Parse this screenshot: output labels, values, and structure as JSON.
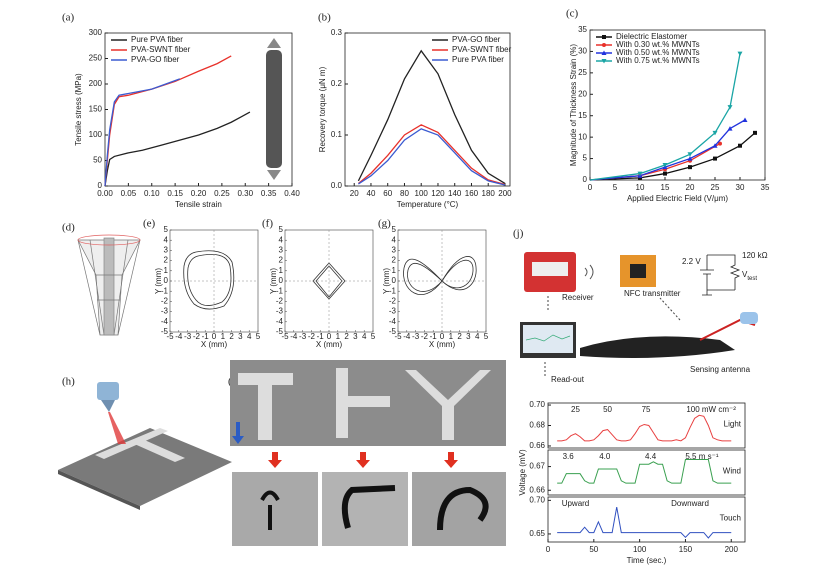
{
  "chart_data": [
    {
      "type": "line",
      "panel": "(a)",
      "xlabel": "Tensile strain",
      "ylabel": "Tensile stress (MPa)",
      "xlim": [
        0,
        0.4
      ],
      "xticks": [
        {
          "value": 0,
          "label": "0.00"
        },
        {
          "value": 0.05,
          "label": "0.05"
        },
        {
          "value": 0.1,
          "label": "0.10"
        },
        {
          "value": 0.15,
          "label": "0.15"
        },
        {
          "value": 0.2,
          "label": "0.20"
        },
        {
          "value": 0.25,
          "label": "0.25"
        },
        {
          "value": 0.3,
          "label": "0.30"
        },
        {
          "value": 0.35,
          "label": "0.35"
        },
        {
          "value": 0.4,
          "label": "0.40"
        }
      ],
      "ylim": [
        0,
        300
      ],
      "yticks": [
        0,
        50,
        100,
        150,
        200,
        250,
        300
      ],
      "legend": "upper left",
      "series": [
        {
          "name": "Pure PVA fiber",
          "color": "#222222",
          "x": [
            0,
            0.005,
            0.01,
            0.02,
            0.05,
            0.08,
            0.12,
            0.16,
            0.2,
            0.24,
            0.27,
            0.29,
            0.31
          ],
          "values": [
            0,
            30,
            52,
            58,
            65,
            70,
            80,
            90,
            100,
            113,
            125,
            135,
            145
          ]
        },
        {
          "name": "PVA-SWNT fiber",
          "color": "#e8312a",
          "x": [
            0,
            0.005,
            0.01,
            0.02,
            0.03,
            0.05,
            0.1,
            0.15,
            0.2,
            0.24,
            0.27
          ],
          "values": [
            0,
            50,
            100,
            160,
            175,
            178,
            190,
            205,
            225,
            240,
            255
          ]
        },
        {
          "name": "PVA-GO fiber",
          "color": "#3b5bd1",
          "x": [
            0,
            0.005,
            0.01,
            0.02,
            0.03,
            0.06,
            0.1,
            0.13,
            0.16
          ],
          "values": [
            0,
            60,
            110,
            165,
            178,
            183,
            190,
            200,
            210
          ]
        }
      ]
    },
    {
      "type": "line",
      "panel": "(b)",
      "xlabel": "Temperature (°C)",
      "ylabel": "Recovery torque (μN m)",
      "xlim": [
        9,
        206
      ],
      "xticks": [
        20,
        40,
        60,
        80,
        100,
        120,
        140,
        160,
        180,
        200
      ],
      "ylim": [
        0,
        0.3
      ],
      "yticks": [
        {
          "value": 0,
          "label": "0.0"
        },
        {
          "value": 0.1,
          "label": "0.1"
        },
        {
          "value": 0.2,
          "label": "0.2"
        },
        {
          "value": 0.3,
          "label": "0.3"
        }
      ],
      "legend": "upper right",
      "series": [
        {
          "name": "PVA-GO fiber",
          "color": "#222222",
          "x": [
            25,
            40,
            60,
            80,
            100,
            120,
            140,
            160,
            180,
            200
          ],
          "values": [
            0.01,
            0.06,
            0.13,
            0.21,
            0.265,
            0.22,
            0.14,
            0.07,
            0.025,
            0.005
          ]
        },
        {
          "name": "PVA-SWNT fiber",
          "color": "#e8312a",
          "x": [
            25,
            40,
            60,
            80,
            100,
            120,
            140,
            160,
            180,
            200
          ],
          "values": [
            0.005,
            0.025,
            0.06,
            0.1,
            0.12,
            0.105,
            0.07,
            0.035,
            0.012,
            0.003
          ]
        },
        {
          "name": "Pure PVA fiber",
          "color": "#3b5bd1",
          "x": [
            25,
            40,
            60,
            80,
            100,
            120,
            140,
            160,
            180,
            200
          ],
          "values": [
            0.004,
            0.02,
            0.05,
            0.09,
            0.112,
            0.1,
            0.065,
            0.03,
            0.01,
            0.002
          ]
        }
      ]
    },
    {
      "type": "line",
      "panel": "(c)",
      "xlabel": "Applied Electric Field (V/μm)",
      "ylabel": "Magnitude of Thickness Strain (%)",
      "xlim": [
        0,
        35
      ],
      "xticks": [
        0,
        5,
        10,
        15,
        20,
        25,
        30,
        35
      ],
      "ylim": [
        0,
        35
      ],
      "yticks": [
        0,
        5,
        10,
        15,
        20,
        25,
        30,
        35
      ],
      "legend": "upper left",
      "markers": true,
      "series": [
        {
          "name": "Dielectric Elastomer",
          "color": "#111111",
          "marker": "s",
          "x": [
            0,
            10,
            15,
            20,
            25,
            30,
            33
          ],
          "values": [
            0,
            0.5,
            1.5,
            3,
            5,
            8,
            11
          ]
        },
        {
          "name": "With 0.30 wt.% MWNTs",
          "color": "#e8312a",
          "marker": "o",
          "x": [
            0,
            10,
            15,
            20,
            26
          ],
          "values": [
            0,
            1,
            2.5,
            4.5,
            8.5
          ]
        },
        {
          "name": "With 0.50 wt.% MWNTs",
          "color": "#2233dd",
          "marker": "^",
          "x": [
            0,
            10,
            15,
            20,
            25,
            28,
            31
          ],
          "values": [
            0,
            1,
            3,
            5,
            8,
            12,
            14
          ]
        },
        {
          "name": "With 0.75 wt.% MWNTs",
          "color": "#1aa5a5",
          "marker": "v",
          "x": [
            0,
            10,
            15,
            20,
            25,
            28,
            30
          ],
          "values": [
            0,
            1.5,
            3.5,
            6,
            11,
            17,
            29.5
          ]
        }
      ]
    },
    {
      "type": "stacked_line",
      "panel": "(j)",
      "xlabel": "Time (sec.)",
      "ylabel": "Voltage (mV)",
      "xlim": [
        0,
        215
      ],
      "xticks": [
        0,
        50,
        100,
        150,
        200
      ],
      "x": [
        10,
        15,
        20,
        25,
        30,
        35,
        40,
        45,
        50,
        55,
        60,
        65,
        70,
        75,
        80,
        85,
        90,
        95,
        100,
        105,
        110,
        115,
        120,
        125,
        130,
        135,
        140,
        145,
        150,
        155,
        160,
        165,
        170,
        175,
        180,
        185,
        190,
        195,
        200
      ],
      "series": [
        {
          "name": "Light",
          "color": "#e84040",
          "ylim": [
            0.658,
            0.702
          ],
          "yticks": [
            0.66,
            0.68,
            {
              "value": 0.7,
              "label": "0.70"
            }
          ],
          "labels": [
            "25",
            "50",
            "75",
            "100 mW cm⁻²"
          ],
          "values": [
            0.665,
            0.665,
            0.666,
            0.67,
            0.672,
            0.669,
            0.665,
            0.665,
            0.666,
            0.67,
            0.675,
            0.676,
            0.671,
            0.666,
            0.665,
            0.665,
            0.666,
            0.672,
            0.679,
            0.681,
            0.68,
            0.673,
            0.666,
            0.665,
            0.665,
            0.665,
            0.666,
            0.665,
            0.668,
            0.678,
            0.687,
            0.69,
            0.689,
            0.68,
            0.668,
            0.666,
            0.665,
            0.665,
            0.665
          ]
        },
        {
          "name": "Wind",
          "color": "#3aa050",
          "ylim": [
            0.658,
            0.677
          ],
          "yticks": [
            0.66,
            0.67
          ],
          "labels": [
            "3.6",
            "4.0",
            "4.4",
            "5.5 m s⁻¹"
          ],
          "values": [
            0.663,
            0.663,
            0.667,
            0.667,
            0.667,
            0.667,
            0.664,
            0.663,
            0.663,
            0.669,
            0.669,
            0.669,
            0.669,
            0.669,
            0.664,
            0.663,
            0.663,
            0.663,
            0.671,
            0.671,
            0.671,
            0.672,
            0.671,
            0.671,
            0.664,
            0.663,
            0.663,
            0.663,
            0.673,
            0.673,
            0.673,
            0.673,
            0.673,
            0.673,
            0.664,
            0.663,
            0.663,
            0.663,
            0.663
          ]
        },
        {
          "name": "Touch",
          "color": "#3050c0",
          "ylim": [
            0.638,
            0.705
          ],
          "yticks": [
            0.65,
            {
              "value": 0.7,
              "label": "0.70"
            }
          ],
          "labels": [
            "Upward",
            "Downward"
          ],
          "values": [
            0.652,
            0.652,
            0.652,
            0.652,
            0.652,
            0.652,
            0.66,
            0.652,
            0.652,
            0.668,
            0.652,
            0.652,
            0.652,
            0.69,
            0.652,
            0.652,
            0.652,
            0.652,
            0.652,
            0.652,
            0.652,
            0.652,
            0.652,
            0.652,
            0.652,
            0.652,
            0.652,
            0.652,
            0.645,
            0.652,
            0.652,
            0.652,
            0.652,
            0.644,
            0.652,
            0.652,
            0.652,
            0.652,
            0.652
          ]
        }
      ]
    }
  ],
  "labels": {
    "d": "(d)",
    "e": "(e)",
    "f": "(f)",
    "g": "(g)",
    "h": "(h)",
    "i": "(i)"
  },
  "trajectory": {
    "xlabel": "X (mm)",
    "ylabel": "Y (mm)",
    "ticks": [
      -5,
      -4,
      -3,
      -2,
      -1,
      0,
      1,
      2,
      3,
      4,
      5
    ]
  },
  "sensor_setup": {
    "receiver": "Receiver",
    "transmitter": "NFC transmitter",
    "voltage": "2.2 V",
    "resistor": "120 kΩ",
    "vtest": {
      "symbol": "V",
      "subscript": "test"
    },
    "readout": "Read-out",
    "antenna": "Sensing antenna"
  }
}
